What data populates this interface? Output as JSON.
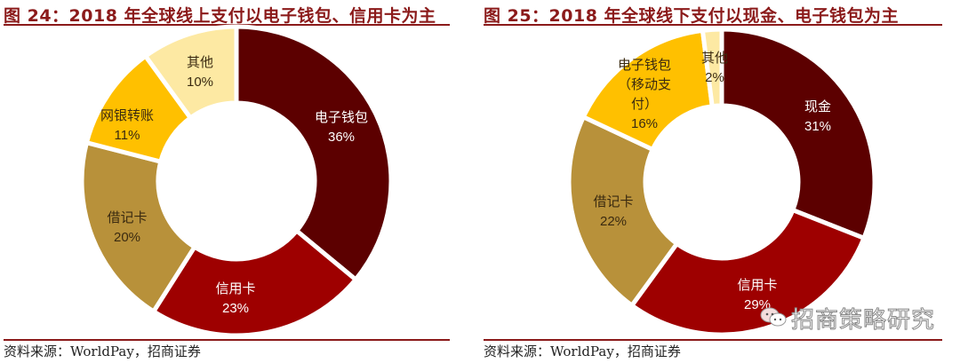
{
  "charts": [
    {
      "title": "图 24：2018 年全球线上支付以电子钱包、信用卡为主",
      "source": "资料来源：WorldPay，招商证券"
    },
    {
      "title": "图 25：2018 年全球线下支付以现金、电子钱包为主",
      "source": "资料来源：WorldPay，招商证券"
    }
  ],
  "watermark": "招商策略研究",
  "colors": {
    "dark_maroon": "#5c0000",
    "crimson": "#9e0000",
    "khaki_gold": "#b8913a",
    "amber": "#ffc000",
    "pale_yellow": "#fde9a3",
    "title_red": "#8b1a1a"
  },
  "chart_data": [
    {
      "type": "pie",
      "subtype": "donut",
      "title": "2018年全球线上支付以电子钱包、信用卡为主",
      "categories": [
        "电子钱包",
        "信用卡",
        "借记卡",
        "网银转账",
        "其他"
      ],
      "values": [
        36,
        23,
        20,
        11,
        10
      ],
      "unit": "%",
      "colors": [
        "#5c0000",
        "#9e0000",
        "#b8913a",
        "#ffc000",
        "#fde9a3"
      ],
      "labels": [
        "电子钱包\n36%",
        "信用卡\n23%",
        "借记卡\n20%",
        "网银转账\n11%",
        "其他\n10%"
      ],
      "source": "资料来源：WorldPay，招商证券"
    },
    {
      "type": "pie",
      "subtype": "donut",
      "title": "2018年全球线下支付以现金、电子钱包为主",
      "categories": [
        "现金",
        "信用卡",
        "借记卡",
        "电子钱包（移动支付）",
        "其他"
      ],
      "values": [
        31,
        29,
        22,
        16,
        2
      ],
      "unit": "%",
      "colors": [
        "#5c0000",
        "#9e0000",
        "#b8913a",
        "#ffc000",
        "#fde9a3"
      ],
      "labels": [
        "现金\n31%",
        "信用卡\n29%",
        "借记卡\n22%",
        "电子钱包（移动支付）\n16%",
        "其他\n2%"
      ],
      "source": "资料来源：WorldPay，招商证券"
    }
  ]
}
